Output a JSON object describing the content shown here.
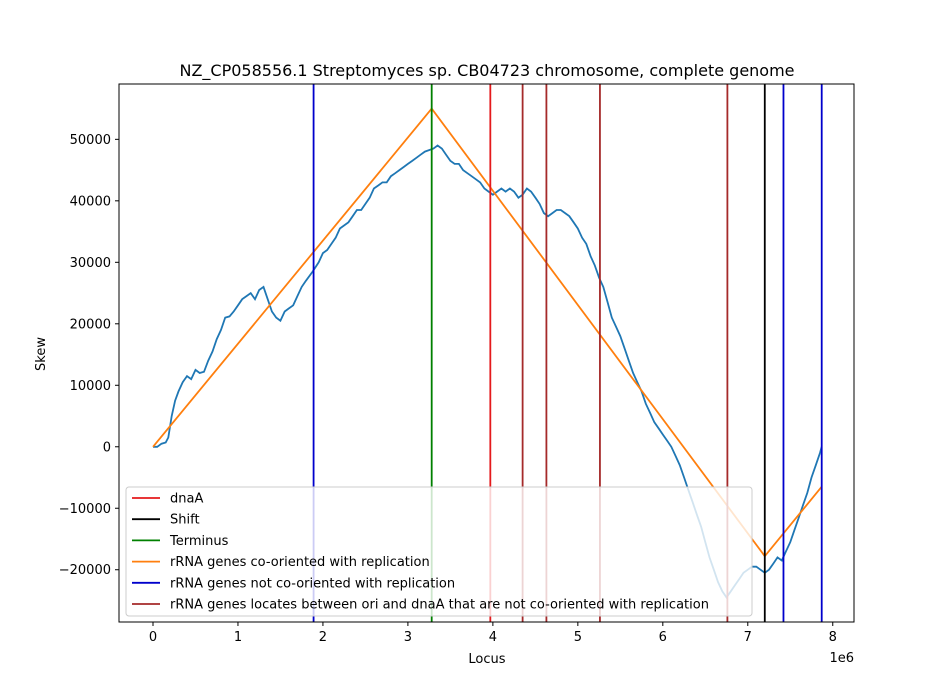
{
  "chart_data": {
    "type": "line",
    "title": "NZ_CP058556.1 Streptomyces sp. CB04723 chromosome, complete genome",
    "xlabel": "Locus",
    "ylabel": "Skew",
    "x_offset_label": "1e6",
    "xlim": [
      -400000,
      8250000
    ],
    "ylim": [
      -28500,
      59000
    ],
    "xticks": [
      0,
      1000000,
      2000000,
      3000000,
      4000000,
      5000000,
      6000000,
      7000000,
      8000000
    ],
    "xtick_labels": [
      "0",
      "1",
      "2",
      "3",
      "4",
      "5",
      "6",
      "7",
      "8"
    ],
    "yticks": [
      -20000,
      -10000,
      0,
      10000,
      20000,
      30000,
      40000,
      50000
    ],
    "ytick_labels": [
      "−20000",
      "−10000",
      "0",
      "10000",
      "20000",
      "30000",
      "40000",
      "50000"
    ],
    "grid": false,
    "legend_position": "lower-left",
    "skew_line": {
      "color": "#1f77b4",
      "points": [
        [
          0,
          0
        ],
        [
          50000,
          0
        ],
        [
          100000,
          500
        ],
        [
          150000,
          700
        ],
        [
          180000,
          1500
        ],
        [
          220000,
          5000
        ],
        [
          260000,
          7500
        ],
        [
          300000,
          9000
        ],
        [
          350000,
          10500
        ],
        [
          400000,
          11500
        ],
        [
          450000,
          11000
        ],
        [
          500000,
          12500
        ],
        [
          550000,
          12000
        ],
        [
          600000,
          12200
        ],
        [
          650000,
          14000
        ],
        [
          700000,
          15500
        ],
        [
          750000,
          17500
        ],
        [
          800000,
          19000
        ],
        [
          850000,
          21000
        ],
        [
          900000,
          21200
        ],
        [
          950000,
          22000
        ],
        [
          1000000,
          23000
        ],
        [
          1050000,
          24000
        ],
        [
          1100000,
          24500
        ],
        [
          1150000,
          25000
        ],
        [
          1200000,
          24000
        ],
        [
          1250000,
          25500
        ],
        [
          1300000,
          26000
        ],
        [
          1350000,
          24000
        ],
        [
          1400000,
          22000
        ],
        [
          1450000,
          21000
        ],
        [
          1500000,
          20500
        ],
        [
          1550000,
          22000
        ],
        [
          1600000,
          22500
        ],
        [
          1650000,
          23000
        ],
        [
          1700000,
          24500
        ],
        [
          1750000,
          26000
        ],
        [
          1800000,
          27000
        ],
        [
          1880000,
          28500
        ],
        [
          1950000,
          30000
        ],
        [
          2000000,
          31500
        ],
        [
          2050000,
          32000
        ],
        [
          2100000,
          33000
        ],
        [
          2150000,
          34000
        ],
        [
          2200000,
          35500
        ],
        [
          2250000,
          36000
        ],
        [
          2300000,
          36500
        ],
        [
          2350000,
          37500
        ],
        [
          2400000,
          38500
        ],
        [
          2450000,
          38500
        ],
        [
          2500000,
          39500
        ],
        [
          2550000,
          40500
        ],
        [
          2600000,
          42000
        ],
        [
          2650000,
          42500
        ],
        [
          2700000,
          43000
        ],
        [
          2750000,
          43000
        ],
        [
          2800000,
          44000
        ],
        [
          2850000,
          44500
        ],
        [
          2900000,
          45000
        ],
        [
          2950000,
          45500
        ],
        [
          3000000,
          46000
        ],
        [
          3050000,
          46500
        ],
        [
          3100000,
          47000
        ],
        [
          3150000,
          47500
        ],
        [
          3200000,
          48000
        ],
        [
          3300000,
          48500
        ],
        [
          3350000,
          49000
        ],
        [
          3400000,
          48500
        ],
        [
          3450000,
          47500
        ],
        [
          3500000,
          46500
        ],
        [
          3550000,
          46000
        ],
        [
          3600000,
          46000
        ],
        [
          3650000,
          45000
        ],
        [
          3700000,
          44500
        ],
        [
          3750000,
          44000
        ],
        [
          3800000,
          43500
        ],
        [
          3850000,
          43000
        ],
        [
          3900000,
          42000
        ],
        [
          3950000,
          41500
        ],
        [
          4000000,
          41000
        ],
        [
          4050000,
          41500
        ],
        [
          4100000,
          42000
        ],
        [
          4150000,
          41500
        ],
        [
          4200000,
          42000
        ],
        [
          4250000,
          41500
        ],
        [
          4300000,
          40500
        ],
        [
          4350000,
          41000
        ],
        [
          4400000,
          42000
        ],
        [
          4450000,
          41500
        ],
        [
          4500000,
          40500
        ],
        [
          4550000,
          39500
        ],
        [
          4600000,
          38000
        ],
        [
          4650000,
          37500
        ],
        [
          4700000,
          38000
        ],
        [
          4750000,
          38500
        ],
        [
          4800000,
          38500
        ],
        [
          4850000,
          38000
        ],
        [
          4900000,
          37500
        ],
        [
          4950000,
          36500
        ],
        [
          5000000,
          35500
        ],
        [
          5050000,
          34000
        ],
        [
          5100000,
          33000
        ],
        [
          5150000,
          31000
        ],
        [
          5200000,
          29500
        ],
        [
          5250000,
          27500
        ],
        [
          5300000,
          26000
        ],
        [
          5350000,
          23500
        ],
        [
          5400000,
          21000
        ],
        [
          5450000,
          19500
        ],
        [
          5500000,
          18000
        ],
        [
          5550000,
          16000
        ],
        [
          5600000,
          14000
        ],
        [
          5650000,
          12000
        ],
        [
          5700000,
          10500
        ],
        [
          5750000,
          9000
        ],
        [
          5800000,
          7000
        ],
        [
          5850000,
          5500
        ],
        [
          5900000,
          4000
        ],
        [
          5950000,
          3000
        ],
        [
          6000000,
          2000
        ],
        [
          6050000,
          1000
        ],
        [
          6100000,
          0
        ],
        [
          6150000,
          -1500
        ],
        [
          6200000,
          -3000
        ],
        [
          6250000,
          -5000
        ],
        [
          6300000,
          -7000
        ],
        [
          6350000,
          -9000
        ],
        [
          6400000,
          -11000
        ],
        [
          6450000,
          -13000
        ],
        [
          6500000,
          -15500
        ],
        [
          6550000,
          -18000
        ],
        [
          6600000,
          -20000
        ],
        [
          6650000,
          -22000
        ],
        [
          6700000,
          -23500
        ],
        [
          6750000,
          -24500
        ],
        [
          6800000,
          -23500
        ],
        [
          6850000,
          -22500
        ],
        [
          6900000,
          -21500
        ],
        [
          6950000,
          -20500
        ],
        [
          7000000,
          -20000
        ],
        [
          7050000,
          -19500
        ],
        [
          7100000,
          -19500
        ],
        [
          7150000,
          -20000
        ],
        [
          7200000,
          -20500
        ],
        [
          7250000,
          -20000
        ],
        [
          7300000,
          -19000
        ],
        [
          7350000,
          -18000
        ],
        [
          7400000,
          -18500
        ],
        [
          7450000,
          -17000
        ],
        [
          7500000,
          -15500
        ],
        [
          7550000,
          -13500
        ],
        [
          7600000,
          -11500
        ],
        [
          7650000,
          -9500
        ],
        [
          7700000,
          -7500
        ],
        [
          7750000,
          -5000
        ],
        [
          7800000,
          -3000
        ],
        [
          7850000,
          -1000
        ],
        [
          7870000,
          0
        ]
      ]
    },
    "rrna_line": {
      "color": "#ff7f0e",
      "points": [
        [
          0,
          0
        ],
        [
          3280000,
          55000
        ],
        [
          7200000,
          -17800
        ],
        [
          7870000,
          -6500
        ]
      ]
    },
    "vertical_lines": [
      {
        "x": 1890000,
        "category": "not_cooriented"
      },
      {
        "x": 3280000,
        "category": "terminus"
      },
      {
        "x": 3970000,
        "category": "dnaA"
      },
      {
        "x": 4350000,
        "category": "between"
      },
      {
        "x": 4630000,
        "category": "between"
      },
      {
        "x": 5260000,
        "category": "between"
      },
      {
        "x": 6760000,
        "category": "between"
      },
      {
        "x": 7200000,
        "category": "shift"
      },
      {
        "x": 7420000,
        "category": "not_cooriented"
      },
      {
        "x": 7870000,
        "category": "not_cooriented"
      }
    ],
    "legend": [
      {
        "label": "dnaA",
        "color": "#e41a1c"
      },
      {
        "label": "Shift",
        "color": "#000000"
      },
      {
        "label": "Terminus",
        "color": "#008000"
      },
      {
        "label": "rRNA genes co-oriented with replication",
        "color": "#ff7f0e"
      },
      {
        "label": "rRNA genes not co-oriented with replication",
        "color": "#0000cc"
      },
      {
        "label": "rRNA genes locates between ori and dnaA that are not co-oriented with replication",
        "color": "#a52a2a"
      }
    ],
    "category_colors": {
      "dnaA": "#e41a1c",
      "shift": "#000000",
      "terminus": "#008000",
      "not_cooriented": "#0000cc",
      "between": "#a52a2a"
    }
  }
}
